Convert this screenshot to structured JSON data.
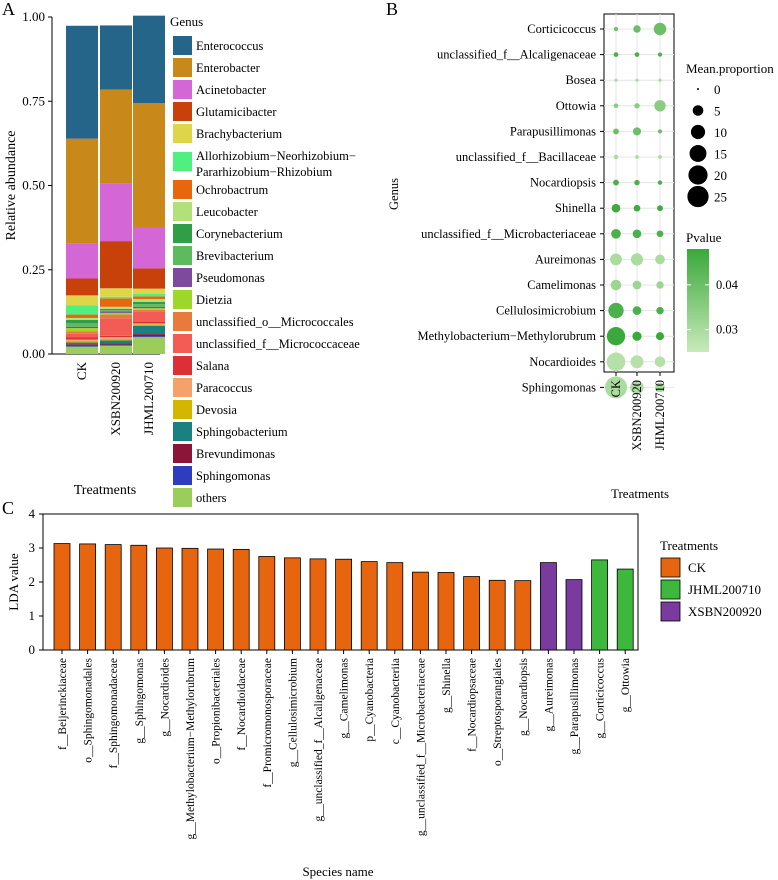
{
  "chart_data": [
    {
      "panel": "A",
      "type": "bar",
      "stacked": true,
      "ylabel": "Relative abundance",
      "xlabel": "Treatments",
      "ylim": [
        0,
        1
      ],
      "yticks": [
        "0.00",
        "0.25",
        "0.50",
        "0.75",
        "1.00"
      ],
      "categories": [
        "CK",
        "XSBN200920",
        "JHML200710"
      ],
      "legend_title": "Genus",
      "series": [
        {
          "name": "others",
          "color": "#9acd5a",
          "values": [
            0.022,
            0.025,
            0.05
          ]
        },
        {
          "name": "Sphingomonas",
          "color": "#2e3dbd",
          "values": [
            0.003,
            0.003,
            0.003
          ]
        },
        {
          "name": "Brevundimonas",
          "color": "#8b1538",
          "values": [
            0.004,
            0.004,
            0.006
          ]
        },
        {
          "name": "Sphingobacterium",
          "color": "#1a8080",
          "values": [
            0.005,
            0.008,
            0.025
          ]
        },
        {
          "name": "Devosia",
          "color": "#d4b600",
          "values": [
            0.005,
            0.005,
            0.004
          ]
        },
        {
          "name": "Paracoccus",
          "color": "#f4a26a",
          "values": [
            0.004,
            0.005,
            0.003
          ]
        },
        {
          "name": "Salana",
          "color": "#dc2f36",
          "values": [
            0.006,
            0.004,
            0.004
          ]
        },
        {
          "name": "unclassified_f__Micrococcaceae",
          "color": "#f25c54",
          "values": [
            0.011,
            0.052,
            0.032
          ]
        },
        {
          "name": "unclassified_o__Micrococcales",
          "color": "#e87a3c",
          "values": [
            0.007,
            0.011,
            0.004
          ]
        },
        {
          "name": "Dietzia",
          "color": "#9fd62a",
          "values": [
            0.01,
            0.005,
            0.005
          ]
        },
        {
          "name": "Pseudomonas",
          "color": "#7e4a9e",
          "values": [
            0.004,
            0.004,
            0.004
          ]
        },
        {
          "name": "Brevibacterium",
          "color": "#5dbb5d",
          "values": [
            0.01,
            0.004,
            0.008
          ]
        },
        {
          "name": "Corynebacterium",
          "color": "#2f9e46",
          "values": [
            0.01,
            0.004,
            0.007
          ]
        },
        {
          "name": "Leucobacter",
          "color": "#b2e07a",
          "values": [
            0.006,
            0.006,
            0.008
          ]
        },
        {
          "name": "Ochrobactrum",
          "color": "#e8670d",
          "values": [
            0.01,
            0.025,
            0.008
          ]
        },
        {
          "name": "Allorhizobium−Neorhizobium−Pararhizobium−Rhizobium",
          "color": "#4ff07f",
          "values": [
            0.027,
            0.005,
            0.008
          ]
        },
        {
          "name": "Brachybacterium",
          "color": "#dfd54a",
          "values": [
            0.03,
            0.025,
            0.015
          ]
        },
        {
          "name": "Glutamicibacter",
          "color": "#c8410a",
          "values": [
            0.05,
            0.14,
            0.06
          ]
        },
        {
          "name": "Acinetobacter",
          "color": "#d466d6",
          "values": [
            0.105,
            0.17,
            0.12
          ]
        },
        {
          "name": "Enterobacter",
          "color": "#c9891a",
          "values": [
            0.31,
            0.28,
            0.37
          ]
        },
        {
          "name": "Enterococcus",
          "color": "#26658a",
          "values": [
            0.335,
            0.19,
            0.26
          ]
        }
      ],
      "legend_order": [
        "Enterococcus",
        "Enterobacter",
        "Acinetobacter",
        "Glutamicibacter",
        "Brachybacterium",
        "Allorhizobium−Neorhizobium−Pararhizobium−Rhizobium",
        "Ochrobactrum",
        "Leucobacter",
        "Corynebacterium",
        "Brevibacterium",
        "Pseudomonas",
        "Dietzia",
        "unclassified_o__Micrococcales",
        "unclassified_f__Micrococcaceae",
        "Salana",
        "Paracoccus",
        "Devosia",
        "Sphingobacterium",
        "Brevundimonas",
        "Sphingomonas",
        "others"
      ],
      "legend_labels": [
        [
          "Enterococcus"
        ],
        [
          "Enterobacter"
        ],
        [
          "Acinetobacter"
        ],
        [
          "Glutamicibacter"
        ],
        [
          "Brachybacterium"
        ],
        [
          "Allorhizobium−Neorhizobium−",
          "Pararhizobium−Rhizobium"
        ],
        [
          "Ochrobactrum"
        ],
        [
          "Leucobacter"
        ],
        [
          "Corynebacterium"
        ],
        [
          "Brevibacterium"
        ],
        [
          "Pseudomonas"
        ],
        [
          "Dietzia"
        ],
        [
          "unclassified_o__Micrococcales"
        ],
        [
          "unclassified_f__Micrococcaceae"
        ],
        [
          "Salana"
        ],
        [
          "Paracoccus"
        ],
        [
          "Devosia"
        ],
        [
          "Sphingobacterium"
        ],
        [
          "Brevundimonas"
        ],
        [
          "Sphingomonas"
        ],
        [
          "others"
        ]
      ]
    },
    {
      "panel": "B",
      "type": "scatter",
      "subtype": "dot-plot",
      "ylabel": "Genus",
      "xlabel": "Treatments",
      "x": [
        "CK",
        "XSBN200920",
        "JHML200710"
      ],
      "genera": [
        "Corticicoccus",
        "unclassified_f__Alcaligenaceae",
        "Bosea",
        "Ottowia",
        "Parapusillimonas",
        "unclassified_f__Bacillaceae",
        "Nocardiopsis",
        "Shinella",
        "unclassified_f__Microbacteriaceae",
        "Aureimonas",
        "Camelimonas",
        "Cellulosimicrobium",
        "Methylobacterium−Methylorubrum",
        "Nocardioides",
        "Sphingomonas"
      ],
      "mean_proportion": [
        [
          0.3,
          2.0,
          7.5
        ],
        [
          0.5,
          0.5,
          0.3
        ],
        [
          0.1,
          0.1,
          0.1
        ],
        [
          0.5,
          0.8,
          6.0
        ],
        [
          1.0,
          2.5,
          0.3
        ],
        [
          0.4,
          0.2,
          0.2
        ],
        [
          1.0,
          0.8,
          0.4
        ],
        [
          3.0,
          1.5,
          1.0
        ],
        [
          4.0,
          3.0,
          1.5
        ],
        [
          6.5,
          7.0,
          4.0
        ],
        [
          5.0,
          3.0,
          2.0
        ],
        [
          12.0,
          3.0,
          2.0
        ],
        [
          18.0,
          3.5,
          2.5
        ],
        [
          18.5,
          8.0,
          5.0
        ],
        [
          27.0,
          9.0,
          4.0
        ]
      ],
      "pvalue": [
        0.04,
        0.045,
        0.03,
        0.035,
        0.04,
        0.03,
        0.045,
        0.047,
        0.045,
        0.03,
        0.032,
        0.045,
        0.048,
        0.028,
        0.03
      ],
      "size_legend_title": "Mean.proportion",
      "size_legend": [
        0,
        5,
        10,
        15,
        20,
        25
      ],
      "color_legend_title": "Pvalue",
      "color_legend_ticks": [
        0.04,
        0.03
      ],
      "color_legend_tick_labels": [
        "0.04",
        "0.03"
      ],
      "color_range": [
        0.025,
        0.048
      ],
      "color_low": "#c8eaba",
      "color_high": "#3aa83a"
    },
    {
      "panel": "C",
      "type": "bar",
      "ylabel": "LDA value",
      "xlabel": "Species name",
      "ylim": [
        0,
        4
      ],
      "yticks": [
        0,
        1,
        2,
        3,
        4
      ],
      "categories": [
        "f__Beijerinckiaceae",
        "o__Sphingomonadales",
        "f__Sphingomonadaceae",
        "g__Sphingomonas",
        "g__Nocardioides",
        "g__Methylobacterium−Methylorubrum",
        "o__Propionibacteriales",
        "f__Nocardioidaceae",
        "f__Promicromonosporaceae",
        "g__Cellulosimicrobium",
        "g__unclassified_f__Alcaligenaceae",
        "g__Camelimonas",
        "p__Cyanobacteria",
        "c__Cyanobacteriia",
        "g__unclassified_f__Microbacteriaceae",
        "g__Shinella",
        "f__Nocardiopsaceae",
        "o__Streptosporangiales",
        "g__Nocardiopsis",
        "g__Aureimonas",
        "g__Parapusillimonas",
        "g__Corticicoccus",
        "g__Ottowia"
      ],
      "values": [
        3.13,
        3.12,
        3.1,
        3.08,
        3.0,
        2.99,
        2.97,
        2.96,
        2.75,
        2.71,
        2.68,
        2.67,
        2.6,
        2.57,
        2.29,
        2.28,
        2.16,
        2.05,
        2.04,
        2.57,
        2.07,
        2.65,
        2.38
      ],
      "groups": [
        "CK",
        "CK",
        "CK",
        "CK",
        "CK",
        "CK",
        "CK",
        "CK",
        "CK",
        "CK",
        "CK",
        "CK",
        "CK",
        "CK",
        "CK",
        "CK",
        "CK",
        "CK",
        "CK",
        "XSBN200920",
        "XSBN200920",
        "JHML200710",
        "JHML200710"
      ],
      "legend_title": "Treatments",
      "legend": [
        {
          "name": "CK",
          "color": "#e8650f"
        },
        {
          "name": "JHML200710",
          "color": "#3db83d"
        },
        {
          "name": "XSBN200920",
          "color": "#7a3b9e"
        }
      ]
    }
  ],
  "panel_labels": {
    "a": "A",
    "b": "B",
    "c": "C"
  }
}
